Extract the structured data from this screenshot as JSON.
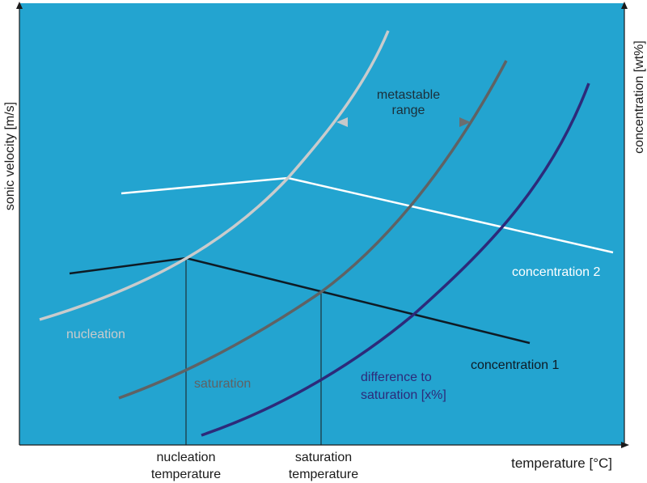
{
  "axes": {
    "x_label": "temperature [°C]",
    "y_left_label": "sonic velocity [m/s]",
    "y_right_label": "concentration [wt%]"
  },
  "curves": {
    "nucleation": "nucleation",
    "saturation": "saturation",
    "difference": [
      "difference to",
      "saturation [x%]"
    ]
  },
  "lines": {
    "concentration_1": "concentration 1",
    "concentration_2": "concentration 2"
  },
  "annotations": {
    "metastable": [
      "metastable",
      "range"
    ],
    "nucleation_temperature": [
      "nucleation",
      "temperature"
    ],
    "saturation_temperature": [
      "saturation",
      "temperature"
    ]
  },
  "colors": {
    "background": "#23a4d0",
    "nucleation_curve": "#c9cbcc",
    "saturation_curve": "#5f6264",
    "difference_curve": "#2d2a7a",
    "concentration_1": "#0e1b25",
    "concentration_2": "#ffffff",
    "arrow": "#c0c0c0",
    "axis": "#1a1a1a"
  }
}
